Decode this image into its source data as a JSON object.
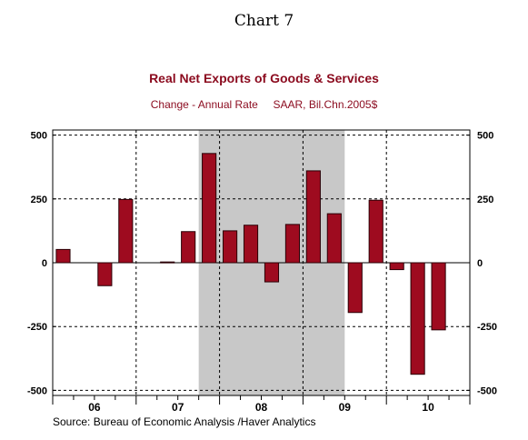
{
  "header": {
    "label": "Chart 7",
    "title": "Real Net Exports of Goods & Services",
    "subtitle": "Change - Annual Rate     SAAR, Bil.Chn.2005$"
  },
  "footer": {
    "source": "Source:  Bureau of Economic Analysis /Haver Analytics"
  },
  "colors": {
    "title": "#8b0a1e",
    "bar_fill": "#9e0b1f",
    "bar_stroke": "#2a0006",
    "recession_shade": "#c8c8c8",
    "grid": "#000000"
  },
  "chart_data": {
    "type": "bar",
    "title": "Real Net Exports of Goods & Services",
    "subtitle": "Change - Annual Rate     SAAR, Bil.Chn.2005$",
    "xlabel": "",
    "ylabel": "",
    "ylim": [
      -520,
      520
    ],
    "yticks": [
      -500,
      -250,
      0,
      250,
      500
    ],
    "ytick_labels": [
      "-500",
      "-250",
      "0",
      "250",
      "500"
    ],
    "year_labels": [
      "06",
      "07",
      "08",
      "09",
      "10"
    ],
    "quarters": [
      "2006-Q1",
      "2006-Q2",
      "2006-Q3",
      "2006-Q4",
      "2007-Q1",
      "2007-Q2",
      "2007-Q3",
      "2007-Q4",
      "2008-Q1",
      "2008-Q2",
      "2008-Q3",
      "2008-Q4",
      "2009-Q1",
      "2009-Q2",
      "2009-Q3",
      "2009-Q4",
      "2010-Q1",
      "2010-Q2",
      "2010-Q3",
      "2010-Q4"
    ],
    "values": [
      52,
      null,
      -90,
      248,
      null,
      3,
      122,
      428,
      125,
      147,
      -75,
      150,
      360,
      192,
      -195,
      245,
      -27,
      -437,
      -263,
      null
    ],
    "recession_shading": {
      "start": "2007-Q4",
      "end": "2009-Q2"
    },
    "grid": true,
    "grid_style": "dashed",
    "y_axis_both_sides": true
  }
}
